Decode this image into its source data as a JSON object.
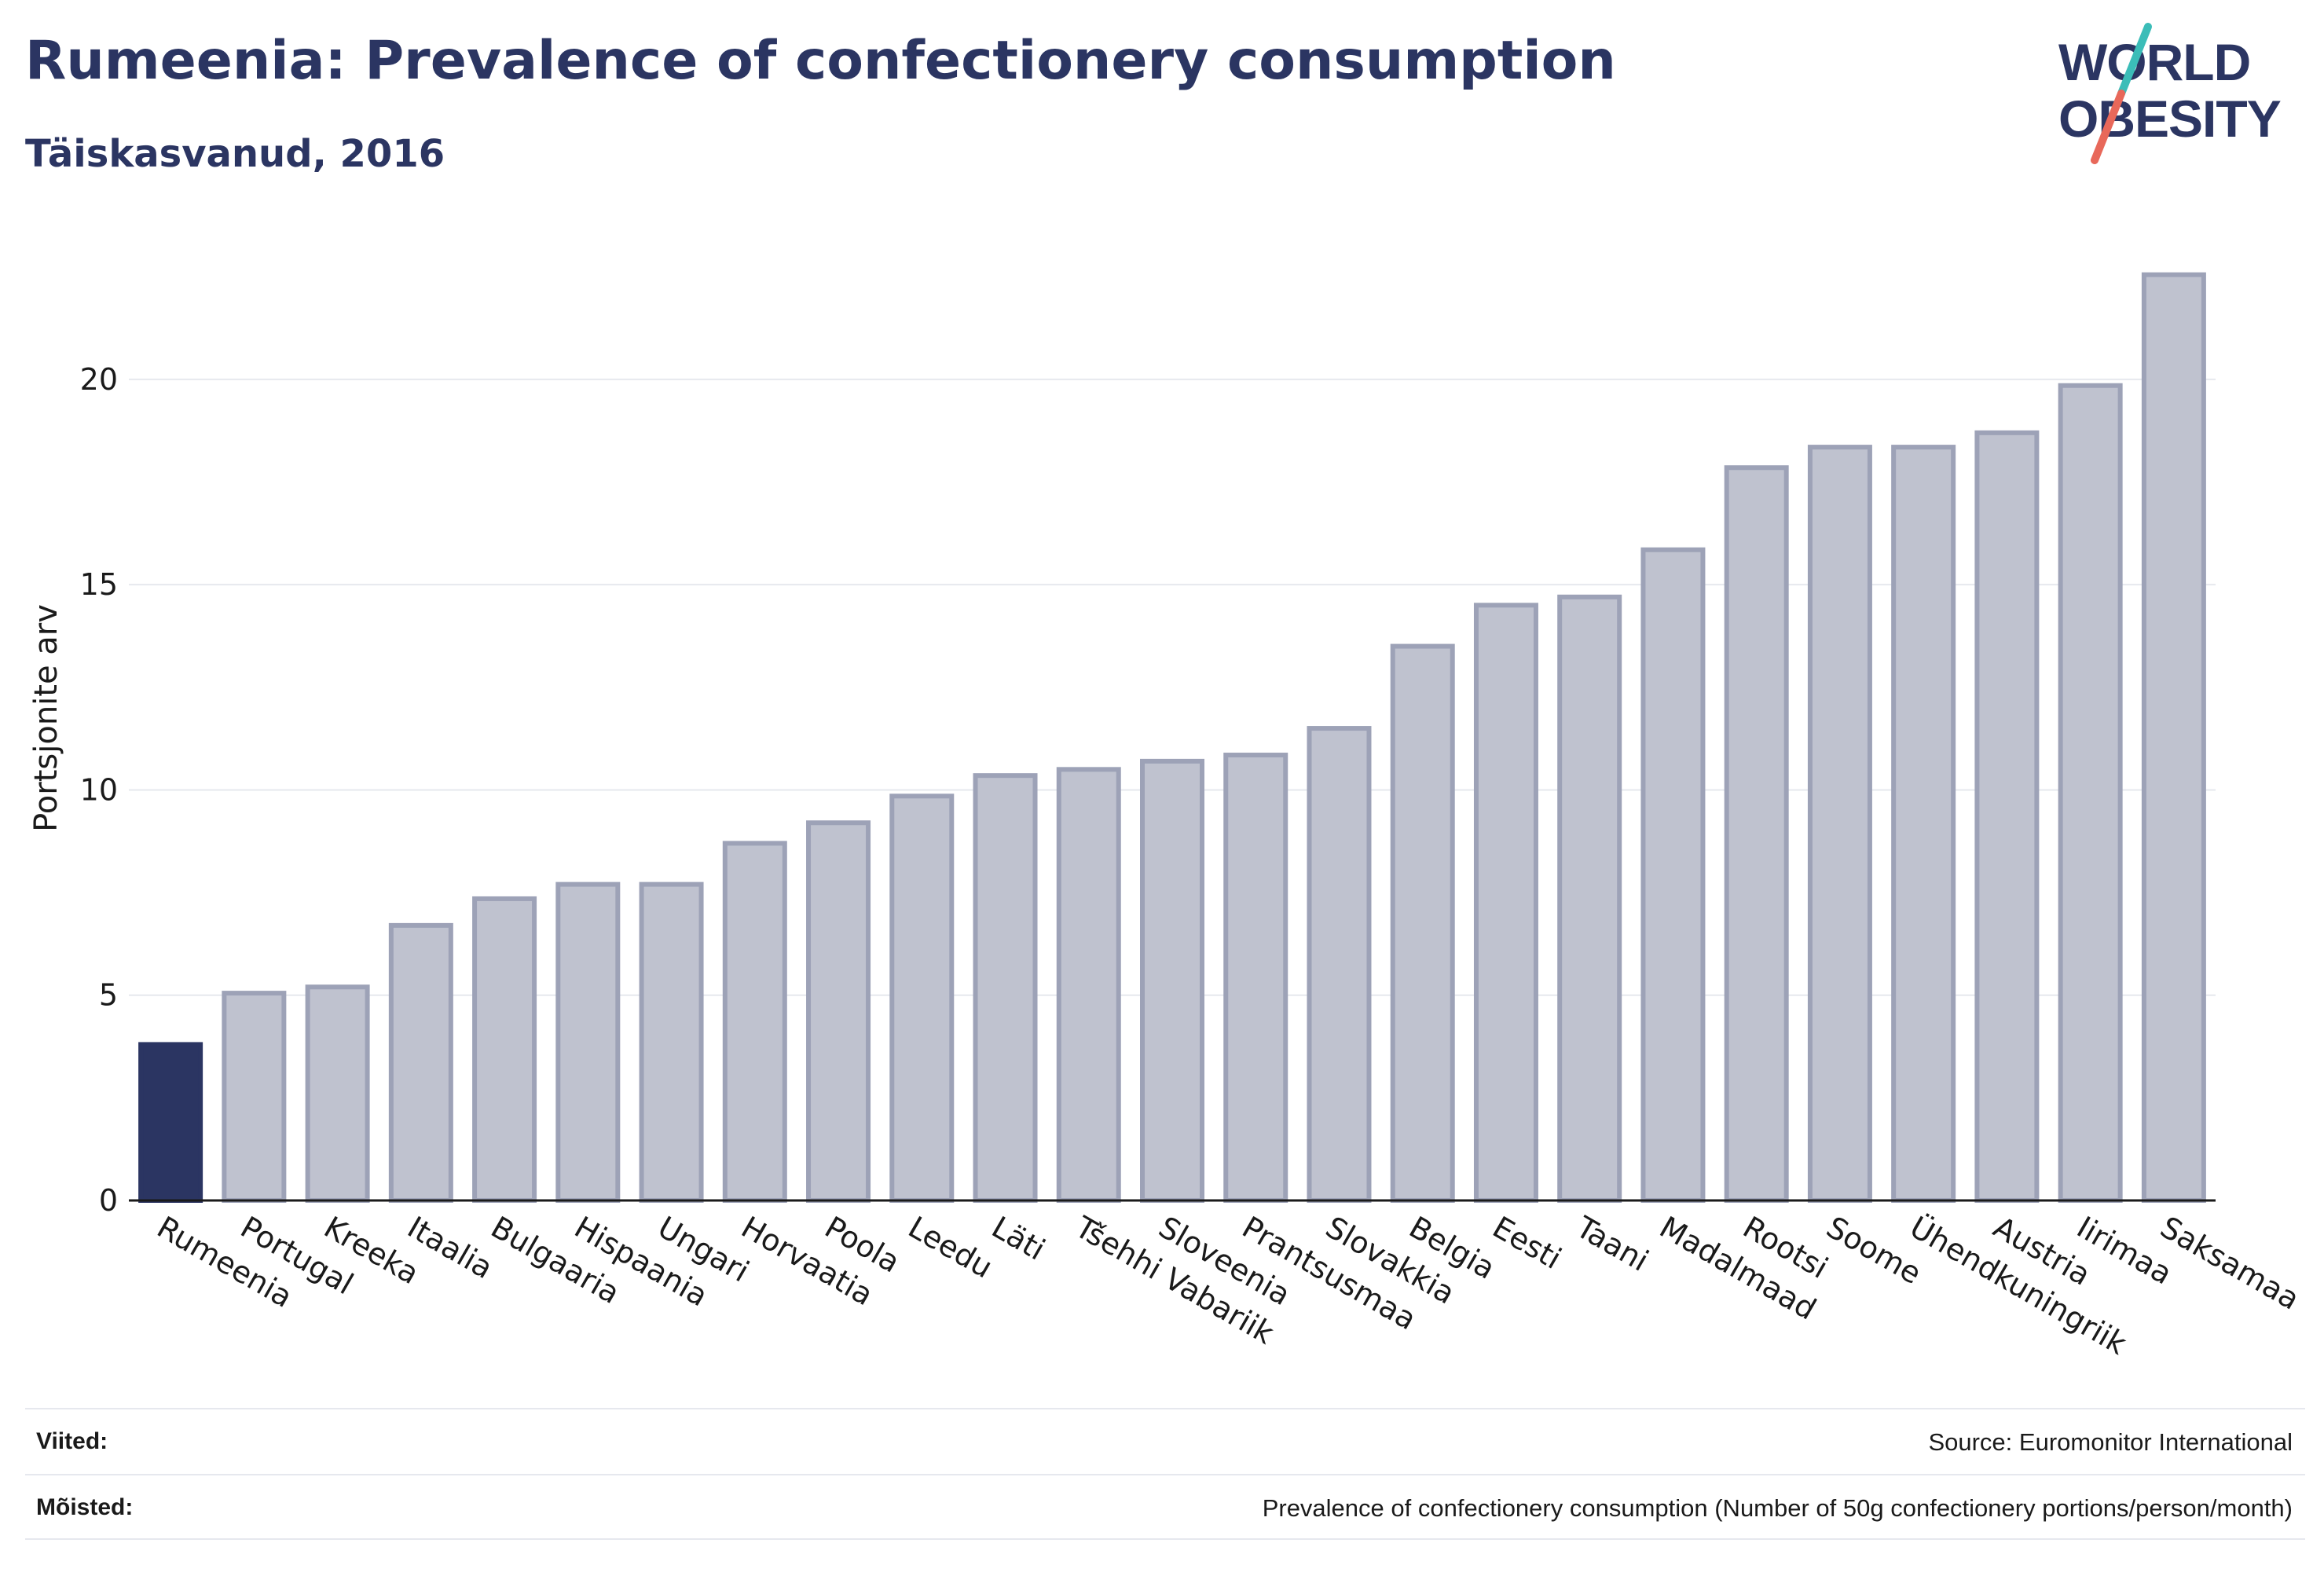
{
  "header": {
    "title": "Rumeenia: Prevalence of confectionery consumption",
    "subtitle": "Täiskasvanud, 2016"
  },
  "logo": {
    "line1": "WORLD",
    "line2": "OBESITY",
    "text_color": "#2b3562",
    "accent_colors": [
      "#3bbdb8",
      "#e8685a"
    ]
  },
  "colors": {
    "highlight_bar": "#2b3562",
    "other_bar_fill": "#bfc2cf",
    "other_bar_stroke": "#9da2b7",
    "gridline": "#e6e8ee",
    "axis": "#1a1a1a",
    "text": "#1a1a1a"
  },
  "chart_data": {
    "type": "bar",
    "categories": [
      "Rumeenia",
      "Portugal",
      "Kreeka",
      "Itaalia",
      "Bulgaaria",
      "Hispaania",
      "Ungari",
      "Horvaatia",
      "Poola",
      "Leedu",
      "Läti",
      "Tšehhi Vabariik",
      "Sloveenia",
      "Prantsusmaa",
      "Slovakkia",
      "Belgia",
      "Eesti",
      "Taani",
      "Madalmaad",
      "Rootsi",
      "Soome",
      "Ühendkuningriik",
      "Austria",
      "Iirimaa",
      "Saksamaa"
    ],
    "values": [
      3.8,
      5.05,
      5.2,
      6.7,
      7.35,
      7.7,
      7.7,
      8.7,
      9.2,
      9.85,
      10.35,
      10.5,
      10.7,
      10.85,
      11.5,
      13.5,
      14.5,
      14.7,
      15.85,
      17.85,
      18.35,
      18.35,
      18.7,
      19.85,
      22.55
    ],
    "highlight": "Rumeenia",
    "ylabel": "Portsjonite arv",
    "xlabel": "",
    "ylim": [
      0,
      23.5
    ],
    "yticks": [
      0,
      5,
      10,
      15,
      20
    ],
    "grid": true,
    "legend": "none"
  },
  "footer": {
    "references_label": "Viited:",
    "references_value": "Source: Euromonitor International",
    "definitions_label": "Mõisted:",
    "definitions_value": "Prevalence of confectionery consumption (Number of 50g confectionery portions/person/month)"
  }
}
